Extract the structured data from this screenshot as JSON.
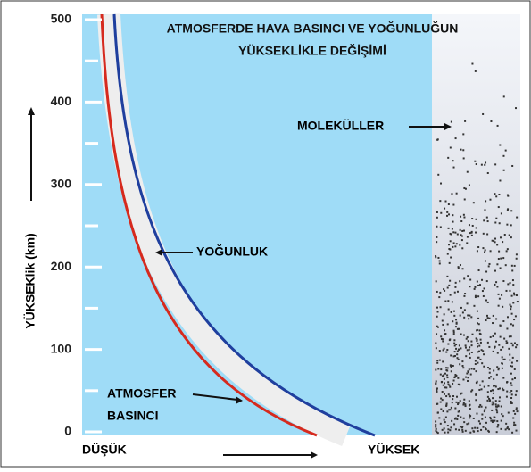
{
  "title_lines": [
    "ATMOSFERDE HAVA BASINCI VE YOĞUNLUĞUN",
    "YÜKSEKLİKLE DEĞİŞİMİ"
  ],
  "y_axis": {
    "label": "YÜKSEKlik (km)",
    "ylim": [
      0,
      500
    ],
    "ticks": [
      0,
      100,
      200,
      300,
      400,
      500
    ]
  },
  "labels": {
    "density": "YOĞUNLUK",
    "molecules": "MOLEKÜLLER",
    "pressure_lines": [
      "ATMOSFER",
      "BASINCI"
    ],
    "low": "DÜŞÜK",
    "high": "YÜKSEK"
  }
}
